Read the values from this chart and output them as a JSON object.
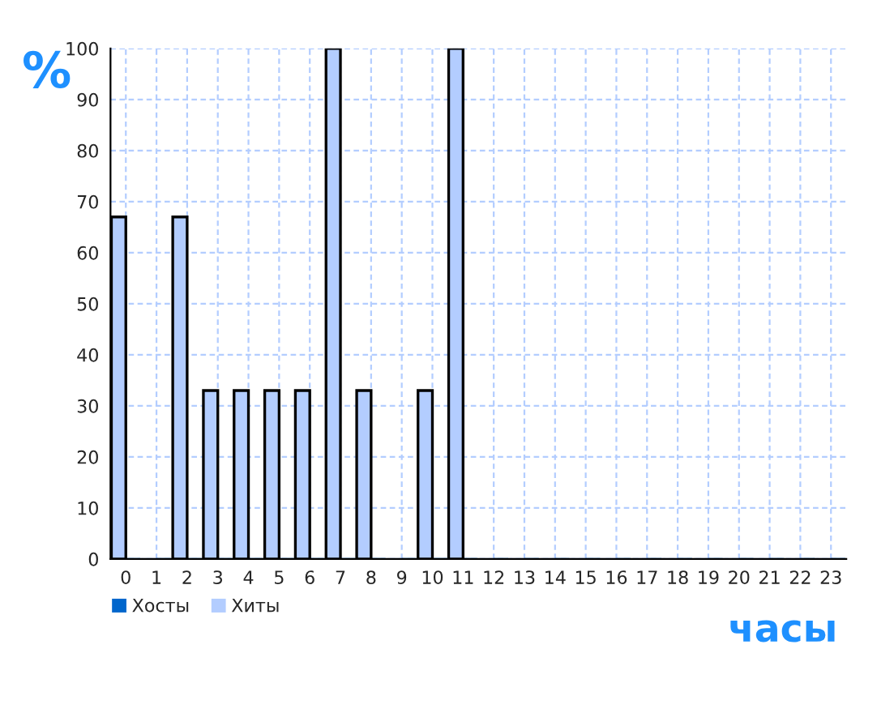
{
  "chart_data": {
    "type": "bar",
    "ylabel": "%",
    "xlabel": "часы",
    "categories": [
      "0",
      "1",
      "2",
      "3",
      "4",
      "5",
      "6",
      "7",
      "8",
      "9",
      "10",
      "11",
      "12",
      "13",
      "14",
      "15",
      "16",
      "17",
      "18",
      "19",
      "20",
      "21",
      "22",
      "23"
    ],
    "series": [
      {
        "name": "Хосты",
        "color": "#0066cc",
        "values": [
          0,
          0,
          0,
          0,
          0,
          0,
          0,
          0,
          0,
          0,
          0,
          0,
          0,
          0,
          0,
          0,
          0,
          0,
          0,
          0,
          0,
          0,
          0,
          0
        ]
      },
      {
        "name": "Хиты",
        "color": "#b3cdff",
        "values": [
          67,
          0,
          67,
          33,
          33,
          33,
          33,
          100,
          33,
          0,
          33,
          100,
          0,
          0,
          0,
          0,
          0,
          0,
          0,
          0,
          0,
          0,
          0,
          0
        ]
      }
    ],
    "ylim": [
      0,
      100
    ],
    "yticks": [
      0,
      10,
      20,
      30,
      40,
      50,
      60,
      70,
      80,
      90,
      100
    ],
    "grid": true,
    "legend": "bottom left"
  }
}
